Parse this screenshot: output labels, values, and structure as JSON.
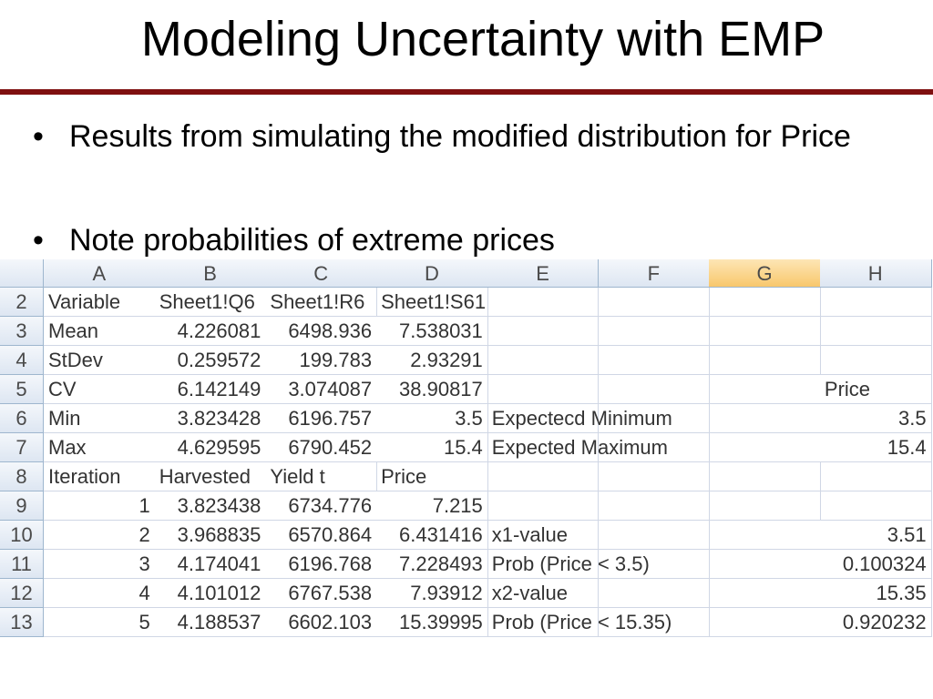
{
  "title": "Modeling Uncertainty with EMP",
  "bullets": [
    "Results from simulating the modified distribution for Price",
    "Note probabilities of extreme prices"
  ],
  "table": {
    "columns": [
      "A",
      "B",
      "C",
      "D",
      "E",
      "F",
      "G",
      "H"
    ],
    "selected_column": 6,
    "rows": [
      {
        "number": 2,
        "cells": [
          "Variable",
          "Sheet1!Q6",
          "Sheet1!R6",
          "Sheet1!S61",
          null,
          null,
          null,
          null
        ]
      },
      {
        "number": 3,
        "cells": [
          "Mean",
          4.226081,
          6498.936,
          7.538031,
          null,
          null,
          null,
          null
        ]
      },
      {
        "number": 4,
        "cells": [
          "StDev",
          0.259572,
          199.783,
          2.93291,
          null,
          null,
          null,
          null
        ]
      },
      {
        "number": 5,
        "cells": [
          "CV",
          6.142149,
          3.074087,
          38.90817,
          null,
          null,
          null,
          "Price"
        ]
      },
      {
        "number": 6,
        "cells": [
          "Min",
          3.823428,
          6196.757,
          3.5,
          "Expectecd Minimum",
          null,
          null,
          3.5
        ]
      },
      {
        "number": 7,
        "cells": [
          "Max",
          4.629595,
          6790.452,
          15.4,
          "Expected Maximum",
          null,
          null,
          15.4
        ]
      },
      {
        "number": 8,
        "cells": [
          "Iteration",
          "Harvested",
          "Yield t",
          "Price",
          null,
          null,
          null,
          null
        ]
      },
      {
        "number": 9,
        "cells": [
          1,
          3.823438,
          6734.776,
          7.215,
          null,
          null,
          null,
          null
        ]
      },
      {
        "number": 10,
        "cells": [
          2,
          3.968835,
          6570.864,
          6.431416,
          "x1-value",
          null,
          null,
          3.51
        ]
      },
      {
        "number": 11,
        "cells": [
          3,
          4.174041,
          6196.768,
          7.228493,
          "Prob (Price < 3.5)",
          null,
          null,
          0.100324
        ]
      },
      {
        "number": 12,
        "cells": [
          4,
          4.101012,
          6767.538,
          7.93912,
          "x2-value",
          null,
          null,
          15.35
        ]
      },
      {
        "number": 13,
        "cells": [
          5,
          4.188537,
          6602.103,
          15.39995,
          "Prob (Price < 15.35)",
          null,
          null,
          0.920232
        ]
      }
    ]
  }
}
